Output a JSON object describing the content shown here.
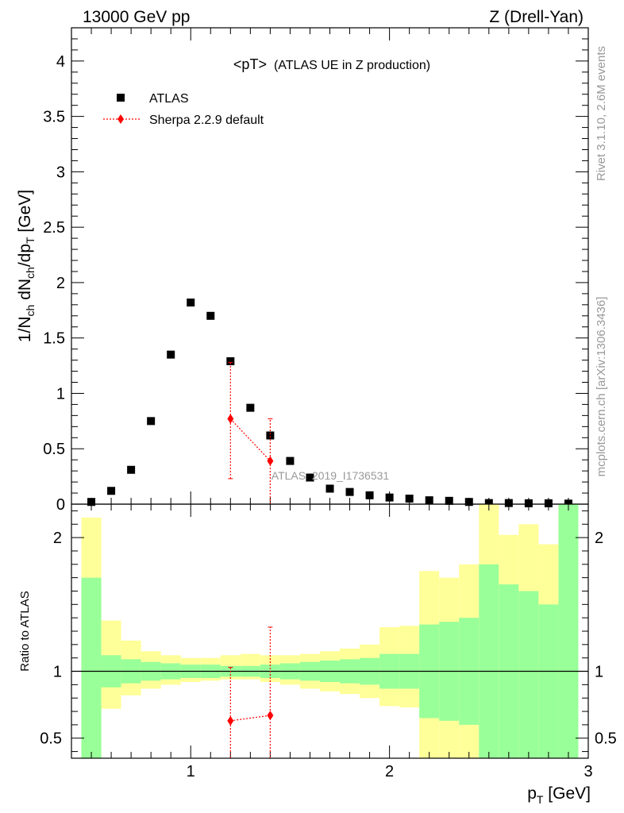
{
  "header": {
    "left_label": "13000 GeV pp",
    "right_label": "Z (Drell-Yan)"
  },
  "title": {
    "main": "<pT>",
    "sub": "(ATLAS UE in Z production)"
  },
  "side_labels": {
    "rivet": "Rivet 3.1.10,  2.6M events",
    "mcplots": "mcplots.cern.ch [arXiv:1306.3436]"
  },
  "watermark": "ATLAS_2019_I1736531",
  "colors": {
    "data": "#000000",
    "mc": "#ff0000",
    "band_inner": "#99ff99",
    "band_outer": "#ffff99"
  },
  "chart_data": {
    "type": "scatter",
    "xlabel": "p_T [GeV]",
    "ylabel": "1/N_ch dN_ch/dp_T [GeV]",
    "xlim": [
      0.4,
      3.0
    ],
    "ylim": [
      0,
      4.3
    ],
    "ratio_ylabel": "Ratio to ATLAS",
    "ratio_ylim": [
      0.35,
      2.25
    ],
    "x_ticks": [
      1,
      2,
      3
    ],
    "y_ticks": [
      0,
      0.5,
      1,
      1.5,
      2,
      2.5,
      3,
      3.5,
      4
    ],
    "ratio_ticks": [
      0.5,
      1,
      2
    ],
    "x_tick_labels": [
      "1",
      "2",
      "3"
    ],
    "y_tick_labels": [
      "0",
      "0.5",
      "1",
      "1.5",
      "2",
      "2.5",
      "3",
      "3.5",
      "4"
    ],
    "ratio_tick_labels": [
      "0.5",
      "1",
      "2"
    ],
    "legend": [
      "ATLAS",
      "Sherpa 2.2.9 default"
    ],
    "legend_position": "top-left",
    "atlas": {
      "name": "ATLAS",
      "x": [
        0.5,
        0.6,
        0.7,
        0.8,
        0.9,
        1.0,
        1.1,
        1.2,
        1.3,
        1.4,
        1.5,
        1.6,
        1.7,
        1.8,
        1.9,
        2.0,
        2.1,
        2.2,
        2.3,
        2.4,
        2.5,
        2.6,
        2.7,
        2.8,
        2.9
      ],
      "y": [
        0.02,
        0.12,
        0.31,
        0.75,
        1.35,
        1.82,
        1.7,
        1.29,
        0.87,
        0.62,
        0.39,
        0.24,
        0.14,
        0.11,
        0.08,
        0.06,
        0.05,
        0.035,
        0.03,
        0.02,
        0.01,
        0.01,
        0.008,
        0.008,
        0.005
      ]
    },
    "sherpa": {
      "name": "Sherpa 2.2.9 default",
      "x": [
        1.2,
        1.4
      ],
      "y": [
        0.77,
        0.39
      ],
      "y_err_low": [
        0.23,
        0.0
      ],
      "y_err_high": [
        1.28,
        0.77
      ],
      "ratio": [
        0.63,
        0.67
      ],
      "ratio_err_low": [
        0.35,
        0.35
      ],
      "ratio_err_high": [
        1.03,
        1.33
      ]
    },
    "ratio_bands": {
      "edges": [
        0.45,
        0.55,
        0.65,
        0.75,
        0.85,
        0.95,
        1.05,
        1.15,
        1.25,
        1.35,
        1.45,
        1.55,
        1.65,
        1.75,
        1.85,
        1.95,
        2.05,
        2.15,
        2.25,
        2.35,
        2.45,
        2.55,
        2.65,
        2.75,
        2.85,
        2.95
      ],
      "inner_low": [
        0.35,
        0.88,
        0.91,
        0.93,
        0.94,
        0.95,
        0.95,
        0.96,
        0.96,
        0.95,
        0.94,
        0.93,
        0.92,
        0.91,
        0.9,
        0.87,
        0.87,
        0.65,
        0.63,
        0.6,
        0.35,
        0.35,
        0.35,
        0.35,
        0.35
      ],
      "inner_high": [
        1.7,
        1.12,
        1.09,
        1.07,
        1.06,
        1.05,
        1.05,
        1.04,
        1.04,
        1.05,
        1.06,
        1.07,
        1.08,
        1.09,
        1.1,
        1.13,
        1.13,
        1.35,
        1.37,
        1.4,
        1.8,
        1.65,
        1.6,
        1.5,
        2.25
      ],
      "outer_low": [
        0.35,
        0.72,
        0.82,
        0.87,
        0.9,
        0.92,
        0.93,
        0.94,
        0.94,
        0.92,
        0.9,
        0.87,
        0.85,
        0.83,
        0.8,
        0.74,
        0.73,
        0.35,
        0.35,
        0.35,
        0.35,
        0.35,
        0.35,
        0.35,
        0.35
      ],
      "outer_high": [
        2.15,
        1.38,
        1.23,
        1.15,
        1.12,
        1.1,
        1.1,
        1.12,
        1.13,
        1.12,
        1.12,
        1.13,
        1.15,
        1.17,
        1.2,
        1.33,
        1.34,
        1.75,
        1.7,
        1.8,
        2.25,
        2.02,
        2.1,
        1.95,
        2.25
      ]
    }
  }
}
